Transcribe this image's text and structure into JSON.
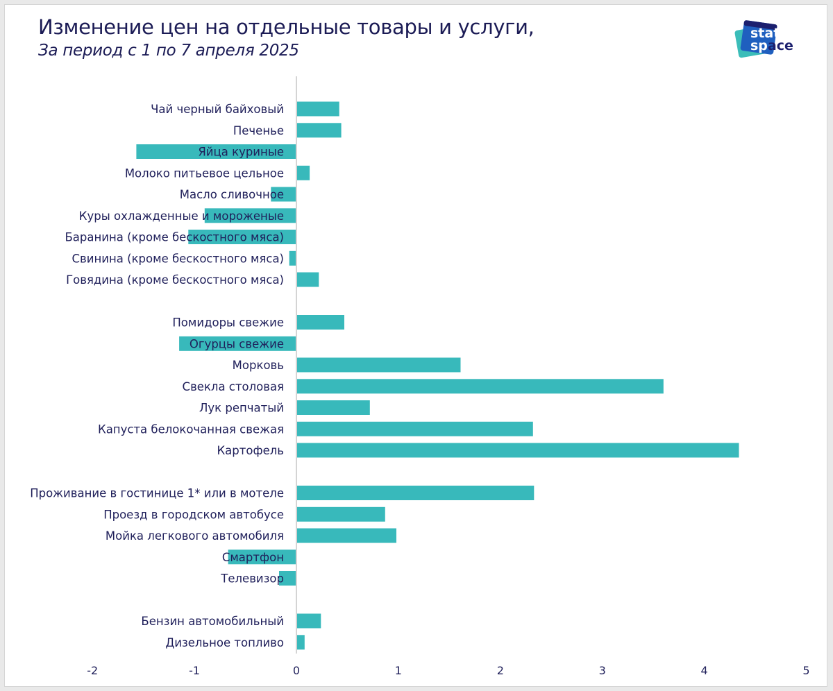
{
  "header": {
    "title": "Изменение цен на отдельные товары и услуги,",
    "subtitle": "За период с 1 по 7 апреля 2025"
  },
  "logo": {
    "line1": "stat",
    "line2": "space",
    "colors": {
      "teal": "#3bbdb9",
      "blue": "#1f5fbf",
      "navy": "#1b1f6e"
    }
  },
  "colors": {
    "bar": "#38b9bb",
    "text": "#1f1f5a",
    "axis": "#d4d4d4"
  },
  "chart_data": {
    "type": "bar",
    "orientation": "horizontal",
    "title": "Изменение цен на отдельные товары и услуги,",
    "subtitle": "За период с 1 по 7 апреля 2025",
    "xlabel": "",
    "ylabel": "",
    "xlim": [
      -2,
      5
    ],
    "xticks": [
      -2,
      -1,
      0,
      1,
      2,
      3,
      4,
      5
    ],
    "grid": false,
    "legend": "none",
    "groups": [
      {
        "categories": [
          "Чай черный байховый",
          "Печенье",
          "Яйца куриные",
          "Молоко питьевое цельное",
          "Масло сливочное",
          "Куры охлажденные и мороженые",
          "Баранина (кроме бескостного мяса)",
          "Свинина (кроме бескостного мяса)",
          "Говядина (кроме бескостного мяса)"
        ],
        "values": [
          0.42,
          0.44,
          -1.57,
          0.13,
          -0.25,
          -0.9,
          -1.06,
          -0.07,
          0.22
        ]
      },
      {
        "categories": [
          "Помидоры свежие",
          "Огурцы свежие",
          "Морковь",
          "Свекла столовая",
          "Лук репчатый",
          "Капуста белокочанная свежая",
          "Картофель"
        ],
        "values": [
          0.47,
          -1.15,
          1.61,
          3.6,
          0.72,
          2.32,
          4.34
        ]
      },
      {
        "categories": [
          "Проживание в гостинице 1* или в мотеле",
          "Проезд в городском автобусе",
          "Мойка легкового автомобиля",
          "Смартфон",
          "Телевизор"
        ],
        "values": [
          2.33,
          0.87,
          0.98,
          -0.67,
          -0.17
        ]
      },
      {
        "categories": [
          "Бензин автомобильный",
          "Дизельное топливо"
        ],
        "values": [
          0.24,
          0.08
        ]
      }
    ]
  }
}
